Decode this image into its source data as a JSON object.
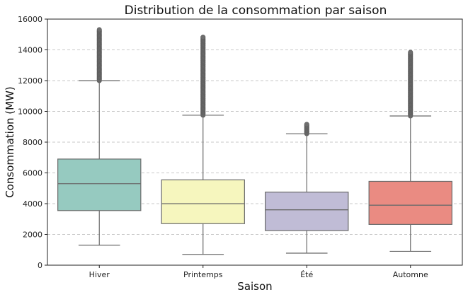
{
  "chart_data": {
    "type": "box",
    "title": "Distribution de la consommation par saison",
    "xlabel": "Saison",
    "ylabel": "Consommation (MW)",
    "ylim": [
      0,
      16000
    ],
    "yticks": [
      0,
      2000,
      4000,
      6000,
      8000,
      10000,
      12000,
      14000,
      16000
    ],
    "grid": "y-dashed",
    "categories": [
      "Hiver",
      "Printemps",
      "Été",
      "Automne"
    ],
    "boxes": [
      {
        "name": "Hiver",
        "color": "#96cac0",
        "whisker_low": 1300,
        "q1": 3550,
        "median": 5300,
        "q3": 6900,
        "whisker_high": 12000,
        "outliers_from": 12000,
        "outliers_to": 15350
      },
      {
        "name": "Printemps",
        "color": "#f6f6be",
        "whisker_low": 700,
        "q1": 2700,
        "median": 4000,
        "q3": 5550,
        "whisker_high": 9750,
        "outliers_from": 9750,
        "outliers_to": 14850
      },
      {
        "name": "Été",
        "color": "#c0bcd6",
        "whisker_low": 780,
        "q1": 2250,
        "median": 3600,
        "q3": 4750,
        "whisker_high": 8550,
        "outliers_from": 8550,
        "outliers_to": 9200
      },
      {
        "name": "Automne",
        "color": "#ea8b82",
        "whisker_low": 900,
        "q1": 2650,
        "median": 3900,
        "q3": 5450,
        "whisker_high": 9700,
        "outliers_from": 9700,
        "outliers_to": 13850
      }
    ]
  }
}
